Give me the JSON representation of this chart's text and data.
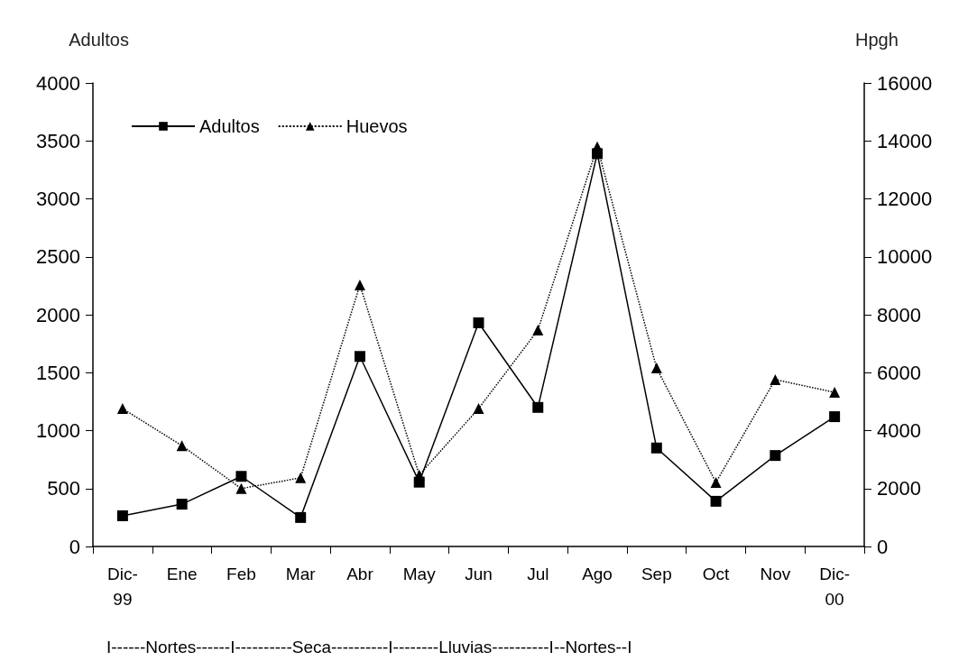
{
  "chart_data": {
    "type": "line",
    "ylabel": "Adultos",
    "y2label": "Hpgh",
    "categories": [
      "Dic-\n99",
      "Ene",
      "Feb",
      "Mar",
      "Abr",
      "May",
      "Jun",
      "Jul",
      "Ago",
      "Sep",
      "Oct",
      "Nov",
      "Dic-\n00"
    ],
    "series": [
      {
        "name": "Adultos",
        "color": "#000000",
        "marker": "square",
        "line_style": "solid",
        "values": [
          265,
          365,
          605,
          250,
          1640,
          555,
          1930,
          1200,
          3390,
          850,
          390,
          785,
          1120
        ]
      },
      {
        "name": "Huevos",
        "color": "#000000",
        "marker": "triangle",
        "line_style": "dotted",
        "axis": "y2",
        "values": [
          4760,
          3480,
          2000,
          2370,
          9030,
          2470,
          4760,
          7470,
          13800,
          6160,
          2210,
          5760,
          5320
        ]
      }
    ],
    "ylim": [
      0,
      4000
    ],
    "yticks": [
      0,
      500,
      1000,
      1500,
      2000,
      2500,
      3000,
      3500,
      4000
    ],
    "y2lim": [
      0,
      16000
    ],
    "y2ticks": [
      0,
      2000,
      4000,
      6000,
      8000,
      10000,
      12000,
      14000,
      16000
    ],
    "grid": false,
    "legend": "top left",
    "annotations": [
      "I------Nortes------I----------Seca----------I--------Lluvias----------I--Nortes--I"
    ]
  }
}
